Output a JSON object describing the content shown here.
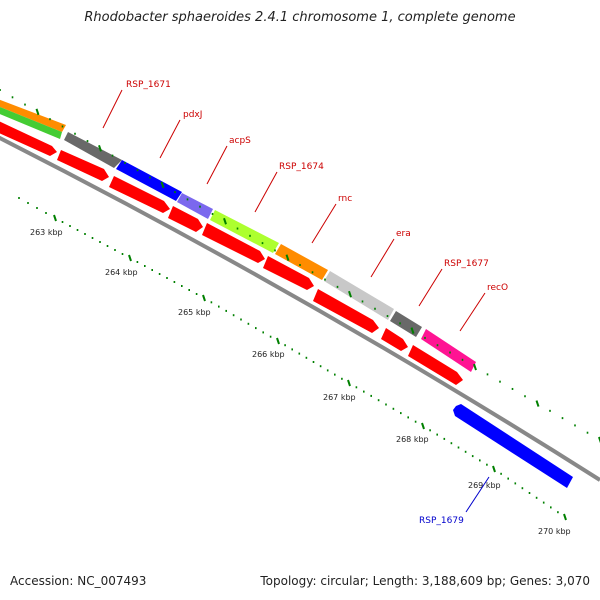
{
  "title": "Rhodobacter sphaeroides 2.4.1 chromosome 1, complete genome",
  "footer": {
    "accession": "Accession: NC_007493",
    "topology": "Topology: circular; Length: 3,188,609 bp; Genes: 3,070"
  },
  "colors": {
    "forward_cds": "#ff0000",
    "reverse_cds": "#0000ff",
    "backbone": "#888888",
    "tick": "#008000",
    "forward_label": "#cc0000",
    "reverse_label": "#0000cc"
  },
  "ruler_labels": [
    "263 kbp",
    "264 kbp",
    "265 kbp",
    "266 kbp",
    "267 kbp",
    "268 kbp",
    "269 kbp",
    "270 kbp"
  ],
  "gene_labels": [
    {
      "name": "RSP_1671",
      "strand": "forward"
    },
    {
      "name": "pdxJ",
      "strand": "forward"
    },
    {
      "name": "acpS",
      "strand": "forward"
    },
    {
      "name": "RSP_1674",
      "strand": "forward"
    },
    {
      "name": "rnc",
      "strand": "forward"
    },
    {
      "name": "era",
      "strand": "forward"
    },
    {
      "name": "RSP_1677",
      "strand": "forward"
    },
    {
      "name": "recO",
      "strand": "forward"
    },
    {
      "name": "RSP_1679",
      "strand": "reverse"
    }
  ],
  "category_segments": [
    {
      "color": "#ff8c00"
    },
    {
      "color": "#696969"
    },
    {
      "color": "#0000ff"
    },
    {
      "color": "#7b68ee"
    },
    {
      "color": "#adff2f"
    },
    {
      "color": "#ff8c00"
    },
    {
      "color": "#c8c8c8"
    },
    {
      "color": "#696969"
    },
    {
      "color": "#ff1493"
    }
  ]
}
